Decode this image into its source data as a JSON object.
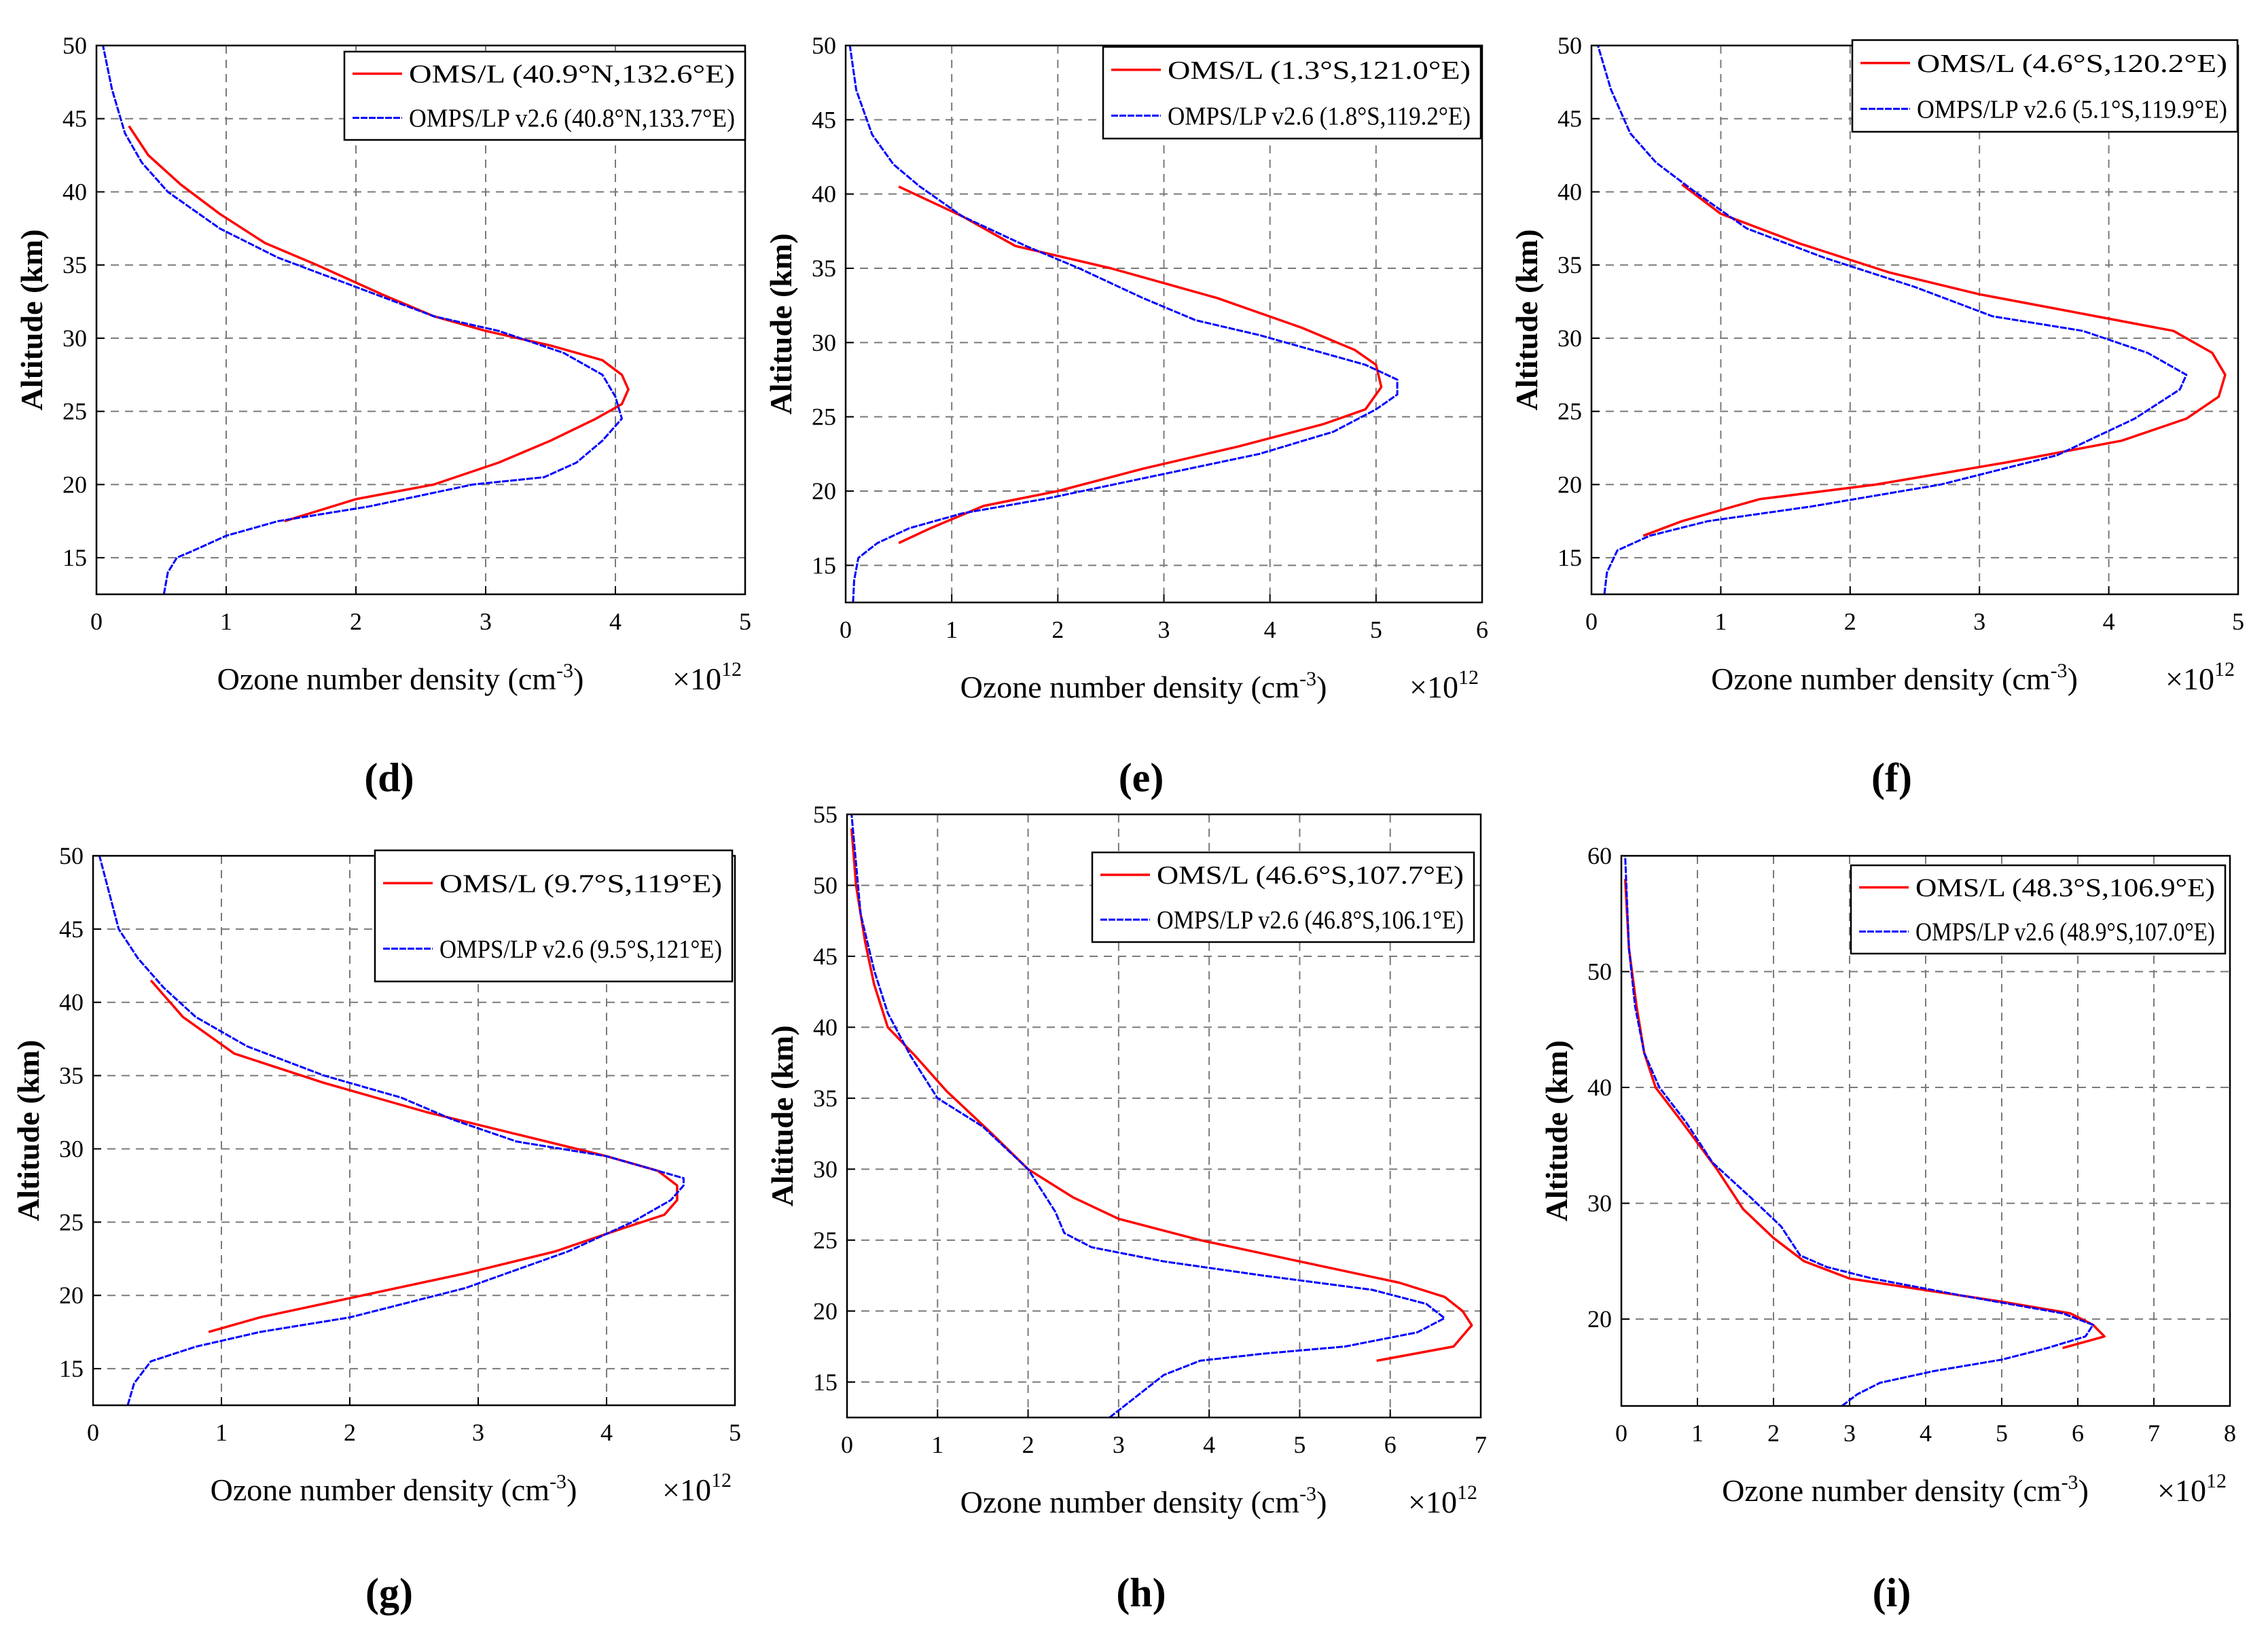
{
  "charts": [
    {
      "id": "d",
      "panel_label": "(d)",
      "xlabel": "Ozone number density (cm",
      "xlabel_sup": "-3",
      "xlabel_end": ")",
      "ylabel": "Altitude (km)",
      "exponent_base": "×10",
      "exponent_power": "12",
      "xticks": [
        "0",
        "1",
        "2",
        "3",
        "4",
        "5"
      ],
      "yticks": [
        "15",
        "20",
        "25",
        "30",
        "35",
        "40",
        "45",
        "50"
      ],
      "legend": [
        "OMS/L (40.9°N,132.6°E)",
        "OMPS/LP v2.6 (40.8°N,133.7°E)"
      ]
    },
    {
      "id": "e",
      "panel_label": "(e)",
      "xlabel": "Ozone number density (cm",
      "xlabel_sup": "-3",
      "xlabel_end": ")",
      "ylabel": "Altitude (km)",
      "exponent_base": "×10",
      "exponent_power": "12",
      "xticks": [
        "0",
        "1",
        "2",
        "3",
        "4",
        "5",
        "6"
      ],
      "yticks": [
        "15",
        "20",
        "25",
        "30",
        "35",
        "40",
        "45",
        "50"
      ],
      "legend": [
        "OMS/L (1.3°S,121.0°E)",
        "OMPS/LP v2.6 (1.8°S,119.2°E)"
      ]
    },
    {
      "id": "f",
      "panel_label": "(f)",
      "xlabel": "Ozone number density (cm",
      "xlabel_sup": "-3",
      "xlabel_end": ")",
      "ylabel": "Altitude (km)",
      "exponent_base": "×10",
      "exponent_power": "12",
      "xticks": [
        "0",
        "1",
        "2",
        "3",
        "4",
        "5"
      ],
      "yticks": [
        "15",
        "20",
        "25",
        "30",
        "35",
        "40",
        "45",
        "50"
      ],
      "legend": [
        "OMS/L (4.6°S,120.2°E)",
        "OMPS/LP v2.6 (5.1°S,119.9°E)"
      ]
    },
    {
      "id": "g",
      "panel_label": "(g)",
      "xlabel": "Ozone number density (cm",
      "xlabel_sup": "-3",
      "xlabel_end": ")",
      "ylabel": "Altitude (km)",
      "exponent_base": "×10",
      "exponent_power": "12",
      "xticks": [
        "0",
        "1",
        "2",
        "3",
        "4",
        "5"
      ],
      "yticks": [
        "15",
        "20",
        "25",
        "30",
        "35",
        "40",
        "45",
        "50"
      ],
      "legend": [
        "OMS/L (9.7°S,119°E)",
        "OMPS/LP v2.6 (9.5°S,121°E)"
      ]
    },
    {
      "id": "h",
      "panel_label": "(h)",
      "xlabel": "Ozone number density (cm",
      "xlabel_sup": "-3",
      "xlabel_end": ")",
      "ylabel": "Altitude (km)",
      "exponent_base": "×10",
      "exponent_power": "12",
      "xticks": [
        "0",
        "1",
        "2",
        "3",
        "4",
        "5",
        "6",
        "7"
      ],
      "yticks": [
        "15",
        "20",
        "25",
        "30",
        "35",
        "40",
        "45",
        "50",
        "55"
      ],
      "legend": [
        "OMS/L (46.6°S,107.7°E)",
        "OMPS/LP v2.6 (46.8°S,106.1°E)"
      ]
    },
    {
      "id": "i",
      "panel_label": "(i)",
      "xlabel": "Ozone number density (cm",
      "xlabel_sup": "-3",
      "xlabel_end": ")",
      "ylabel": "Altitude (km)",
      "exponent_base": "×10",
      "exponent_power": "12",
      "xticks": [
        "0",
        "1",
        "2",
        "3",
        "4",
        "5",
        "6",
        "7",
        "8"
      ],
      "yticks": [
        "20",
        "30",
        "40",
        "50",
        "60"
      ],
      "legend": [
        "OMS/L (48.3°S,106.9°E)",
        "OMPS/LP v2.6 (48.9°S,107.0°E)"
      ]
    }
  ],
  "chart_data": [
    {
      "id": "d",
      "type": "line",
      "title": "",
      "xlabel": "Ozone number density (cm-3)",
      "ylabel": "Altitude (km)",
      "x_multiplier": "×10^12",
      "xlim": [
        0,
        5
      ],
      "ylim": [
        12.5,
        50
      ],
      "grid": true,
      "legend_position": "top-right",
      "colors": [
        "#ff0000",
        "#0000ff"
      ],
      "series": [
        {
          "name": "OMS/L (40.9°N,132.6°E)",
          "x": [
            1.45,
            2.0,
            2.6,
            3.1,
            3.5,
            3.85,
            4.05,
            4.1,
            4.05,
            3.9,
            3.5,
            3.0,
            2.6,
            2.2,
            1.7,
            1.3,
            0.95,
            0.65,
            0.4,
            0.25
          ],
          "y": [
            17.5,
            19,
            20,
            21.5,
            23,
            24.5,
            25.5,
            26.5,
            27.5,
            28.5,
            29.5,
            30.5,
            31.5,
            33,
            35,
            36.5,
            38.5,
            40.5,
            42.5,
            44.5
          ]
        },
        {
          "name": "OMPS/LP v2.6 (40.8°N,133.7°E)",
          "x": [
            0.52,
            0.55,
            0.62,
            0.75,
            1.0,
            1.4,
            2.1,
            2.9,
            3.45,
            3.7,
            3.9,
            4.05,
            4.0,
            3.9,
            3.6,
            3.1,
            2.6,
            2.0,
            1.4,
            0.95,
            0.55,
            0.35,
            0.22,
            0.12,
            0.05
          ],
          "y": [
            12.5,
            14,
            15,
            15.5,
            16.5,
            17.5,
            18.5,
            20,
            20.5,
            21.5,
            23,
            24.5,
            26,
            27.5,
            29,
            30.5,
            31.5,
            33.5,
            35.5,
            37.5,
            40,
            42,
            44,
            47,
            50
          ]
        }
      ]
    },
    {
      "id": "e",
      "type": "line",
      "title": "",
      "xlabel": "Ozone number density (cm-3)",
      "ylabel": "Altitude (km)",
      "x_multiplier": "×10^12",
      "xlim": [
        0,
        6
      ],
      "ylim": [
        12.5,
        50
      ],
      "grid": true,
      "legend_position": "top-right",
      "colors": [
        "#ff0000",
        "#0000ff"
      ],
      "series": [
        {
          "name": "OMS/L (1.3°S,121.0°E)",
          "x": [
            0.5,
            0.8,
            1.3,
            2.0,
            2.8,
            3.7,
            4.5,
            4.9,
            5.05,
            5.0,
            4.8,
            4.3,
            3.5,
            2.5,
            1.6,
            1.1,
            0.8,
            0.5
          ],
          "y": [
            16.5,
            17.5,
            19,
            20,
            21.5,
            23,
            24.5,
            25.5,
            27,
            28.5,
            29.5,
            31,
            33,
            35,
            36.5,
            38.5,
            39.5,
            40.5
          ]
        },
        {
          "name": "OMPS/LP v2.6 (1.8°S,119.2°E)",
          "x": [
            0.07,
            0.08,
            0.12,
            0.3,
            0.6,
            1.1,
            1.9,
            2.9,
            3.9,
            4.6,
            5.0,
            5.2,
            5.2,
            4.9,
            4.4,
            3.9,
            3.3,
            2.8,
            2.2,
            1.7,
            1.1,
            0.7,
            0.45,
            0.25,
            0.1,
            0.04
          ],
          "y": [
            12.5,
            14,
            15.5,
            16.5,
            17.5,
            18.5,
            19.5,
            21,
            22.5,
            24,
            25.5,
            26.5,
            27.5,
            28.5,
            29.5,
            30.5,
            31.5,
            33,
            35,
            36.5,
            38.5,
            40.5,
            42,
            44,
            47,
            50
          ]
        }
      ]
    },
    {
      "id": "f",
      "type": "line",
      "title": "",
      "xlabel": "Ozone number density (cm-3)",
      "ylabel": "Altitude (km)",
      "x_multiplier": "×10^12",
      "xlim": [
        0,
        5
      ],
      "ylim": [
        12.5,
        50
      ],
      "grid": true,
      "legend_position": "top-right",
      "colors": [
        "#ff0000",
        "#0000ff"
      ],
      "series": [
        {
          "name": "OMS/L (4.6°S,120.2°E)",
          "x": [
            0.4,
            0.7,
            1.3,
            2.2,
            3.2,
            4.1,
            4.6,
            4.85,
            4.9,
            4.8,
            4.5,
            3.9,
            3.0,
            2.3,
            1.6,
            1.0,
            0.7
          ],
          "y": [
            16.5,
            17.5,
            19,
            20,
            21.5,
            23,
            24.5,
            26,
            27.5,
            29,
            30.5,
            31.5,
            33,
            34.5,
            36.5,
            38.5,
            40.5
          ]
        },
        {
          "name": "OMPS/LP v2.6 (5.1°S,119.9°E)",
          "x": [
            0.1,
            0.12,
            0.2,
            0.45,
            0.9,
            1.7,
            2.7,
            3.6,
            4.2,
            4.55,
            4.6,
            4.3,
            3.8,
            3.1,
            2.5,
            1.8,
            1.2,
            0.8,
            0.5,
            0.3,
            0.15,
            0.05
          ],
          "y": [
            12.5,
            14,
            15.5,
            16.5,
            17.5,
            18.5,
            20,
            22,
            24.5,
            26.5,
            27.5,
            29,
            30.5,
            31.5,
            33.5,
            35.5,
            37.5,
            40,
            42,
            44,
            47,
            50
          ]
        }
      ]
    },
    {
      "id": "g",
      "type": "line",
      "title": "",
      "xlabel": "Ozone number density (cm-3)",
      "ylabel": "Altitude (km)",
      "x_multiplier": "×10^12",
      "xlim": [
        0,
        5
      ],
      "ylim": [
        12.5,
        50
      ],
      "grid": true,
      "legend_position": "top-right",
      "colors": [
        "#ff0000",
        "#0000ff"
      ],
      "series": [
        {
          "name": "OMS/L (9.7°S,119°E)",
          "x": [
            0.9,
            1.3,
            2.1,
            2.9,
            3.6,
            4.1,
            4.45,
            4.55,
            4.55,
            4.4,
            4.0,
            3.3,
            2.6,
            1.8,
            1.1,
            0.7,
            0.45
          ],
          "y": [
            17.5,
            18.5,
            20,
            21.5,
            23,
            24.5,
            25.5,
            26.5,
            27.5,
            28.5,
            29.5,
            31,
            32.5,
            34.5,
            36.5,
            39,
            41.5
          ]
        },
        {
          "name": "OMPS/LP v2.6 (9.5°S,121°E)",
          "x": [
            0.27,
            0.32,
            0.45,
            0.8,
            1.3,
            2.0,
            2.9,
            3.7,
            4.2,
            4.5,
            4.6,
            4.6,
            4.0,
            3.3,
            2.8,
            2.4,
            1.8,
            1.2,
            0.8,
            0.55,
            0.35,
            0.2,
            0.05
          ],
          "y": [
            12.5,
            14,
            15.5,
            16.5,
            17.5,
            18.5,
            20.5,
            23,
            25,
            26.5,
            27.5,
            28,
            29.5,
            30.5,
            32,
            33.5,
            35,
            37,
            39,
            41,
            43,
            45,
            50
          ]
        }
      ]
    },
    {
      "id": "h",
      "type": "line",
      "title": "",
      "xlabel": "Ozone number density (cm-3)",
      "ylabel": "Altitude (km)",
      "x_multiplier": "×10^12",
      "xlim": [
        0,
        7
      ],
      "ylim": [
        12.5,
        55
      ],
      "grid": true,
      "legend_position": "top-right",
      "colors": [
        "#ff0000",
        "#0000ff"
      ],
      "series": [
        {
          "name": "OMS/L (46.6°S,107.7°E)",
          "x": [
            5.85,
            6.7,
            6.9,
            6.8,
            6.6,
            6.1,
            5.0,
            3.9,
            3.0,
            2.5,
            2.0,
            1.6,
            1.1,
            0.75,
            0.45,
            0.3,
            0.2,
            0.1,
            0.05
          ],
          "y": [
            16.5,
            17.5,
            19,
            20,
            21,
            22,
            23.5,
            25,
            26.5,
            28,
            30,
            32.5,
            35.5,
            38,
            40,
            43,
            46,
            50,
            54
          ]
        },
        {
          "name": "OMPS/LP v2.6 (46.8°S,106.1°E)",
          "x": [
            2.9,
            3.1,
            3.3,
            3.5,
            3.9,
            4.6,
            5.5,
            6.3,
            6.6,
            6.4,
            5.8,
            4.6,
            3.5,
            2.7,
            2.4,
            2.3,
            2.0,
            1.5,
            1.0,
            0.7,
            0.45,
            0.3,
            0.15,
            0.05
          ],
          "y": [
            12.5,
            13.5,
            14.5,
            15.5,
            16.5,
            17,
            17.5,
            18.5,
            19.5,
            20.5,
            21.5,
            22.5,
            23.5,
            24.5,
            25.5,
            27,
            30,
            33,
            35,
            38,
            41,
            44,
            48,
            55
          ]
        }
      ]
    },
    {
      "id": "i",
      "type": "line",
      "title": "",
      "xlabel": "Ozone number density (cm-3)",
      "ylabel": "Altitude (km)",
      "x_multiplier": "×10^12",
      "xlim": [
        0,
        8
      ],
      "ylim": [
        12.5,
        60
      ],
      "grid": true,
      "legend_position": "top-right",
      "colors": [
        "#ff0000",
        "#0000ff"
      ],
      "series": [
        {
          "name": "OMS/L (48.3°S,106.9°E)",
          "x": [
            5.8,
            6.35,
            6.2,
            5.9,
            5.0,
            4.0,
            3.0,
            2.4,
            2.0,
            1.6,
            1.25,
            0.8,
            0.45,
            0.3,
            0.2,
            0.1,
            0.05
          ],
          "y": [
            17.5,
            18.5,
            19.5,
            20.5,
            21.5,
            22.5,
            23.5,
            25,
            27,
            29.5,
            33,
            37,
            40,
            43,
            47,
            52,
            58
          ]
        },
        {
          "name": "OMPS/LP v2.6 (48.9°S,107.0°E)",
          "x": [
            2.9,
            3.1,
            3.4,
            4.1,
            5.0,
            5.6,
            6.1,
            6.2,
            5.8,
            4.5,
            3.3,
            2.7,
            2.35,
            2.1,
            1.7,
            1.2,
            0.85,
            0.5,
            0.3,
            0.18,
            0.1,
            0.05
          ],
          "y": [
            12.5,
            13.5,
            14.5,
            15.5,
            16.5,
            17.5,
            18.5,
            19.5,
            20.5,
            22,
            23.5,
            24.5,
            25.5,
            28,
            30.5,
            33.5,
            37,
            40,
            43,
            47,
            52,
            60
          ]
        }
      ]
    }
  ]
}
